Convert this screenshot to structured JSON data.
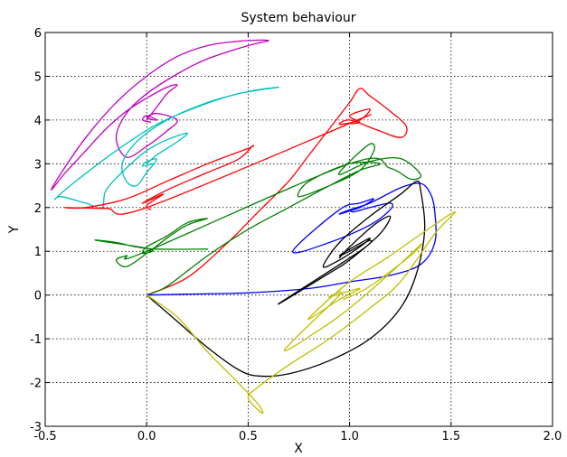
{
  "chart_data": {
    "type": "line",
    "title": "System behaviour",
    "xlabel": "X",
    "ylabel": "Y",
    "xlim": [
      -0.5,
      2.0
    ],
    "ylim": [
      -3,
      6
    ],
    "xticks": [
      -0.5,
      0.0,
      0.5,
      1.0,
      1.5,
      2.0
    ],
    "xtick_labels": [
      "-0.5",
      "0.0",
      "0.5",
      "1.0",
      "1.5",
      "2.0"
    ],
    "yticks": [
      -3,
      -2,
      -1,
      0,
      1,
      2,
      3,
      4,
      5,
      6
    ],
    "ytick_labels": [
      "-3",
      "-2",
      "-1",
      "0",
      "1",
      "2",
      "3",
      "4",
      "5",
      "6"
    ],
    "grid": true,
    "series": [
      {
        "color": "#bf00bf",
        "points": [
          [
            0,
            4
          ],
          [
            0.05,
            4.3
          ],
          [
            0.1,
            4.6
          ],
          [
            0.15,
            4.8
          ],
          [
            0.1,
            4.75
          ],
          [
            0,
            4.5
          ],
          [
            -0.1,
            4.2
          ],
          [
            -0.2,
            3.8
          ],
          [
            -0.3,
            3.3
          ],
          [
            -0.4,
            2.8
          ],
          [
            -0.47,
            2.4
          ],
          [
            -0.42,
            2.8
          ],
          [
            -0.3,
            3.6
          ],
          [
            -0.15,
            4.4
          ],
          [
            0,
            5.0
          ],
          [
            0.15,
            5.45
          ],
          [
            0.3,
            5.7
          ],
          [
            0.45,
            5.8
          ],
          [
            0.6,
            5.82
          ],
          [
            0.5,
            5.7
          ],
          [
            0.3,
            5.4
          ],
          [
            0.15,
            5.05
          ],
          [
            0,
            4.6
          ],
          [
            -0.1,
            4.15
          ],
          [
            -0.15,
            3.6
          ],
          [
            -0.1,
            3.15
          ],
          [
            0,
            3.4
          ],
          [
            0.1,
            3.75
          ],
          [
            0.15,
            4.0
          ],
          [
            0.05,
            4.15
          ],
          [
            0,
            4.05
          ],
          [
            0.05,
            4.0
          ],
          [
            0,
            4.1
          ],
          [
            -0.02,
            4.0
          ],
          [
            0.02,
            3.95
          ]
        ]
      },
      {
        "color": "#00bfbf",
        "points": [
          [
            0,
            3
          ],
          [
            0.05,
            3.2
          ],
          [
            0.15,
            3.5
          ],
          [
            0.2,
            3.7
          ],
          [
            0.1,
            3.55
          ],
          [
            0,
            3.3
          ],
          [
            -0.1,
            2.9
          ],
          [
            -0.2,
            2.4
          ],
          [
            -0.22,
            2.0
          ],
          [
            -0.3,
            2.1
          ],
          [
            -0.42,
            2.25
          ],
          [
            -0.45,
            2.2
          ],
          [
            -0.35,
            2.6
          ],
          [
            -0.15,
            3.3
          ],
          [
            0.05,
            3.9
          ],
          [
            0.25,
            4.3
          ],
          [
            0.45,
            4.6
          ],
          [
            0.65,
            4.75
          ],
          [
            0.5,
            4.65
          ],
          [
            0.3,
            4.4
          ],
          [
            0.1,
            4.0
          ],
          [
            -0.05,
            3.5
          ],
          [
            -0.12,
            3.0
          ],
          [
            -0.1,
            2.6
          ],
          [
            -0.05,
            2.5
          ],
          [
            0,
            2.8
          ],
          [
            0.05,
            3.1
          ],
          [
            0,
            3.05
          ],
          [
            -0.02,
            2.95
          ],
          [
            0.03,
            3.0
          ]
        ]
      },
      {
        "color": "#ff0000",
        "points": [
          [
            0,
            0
          ],
          [
            0.2,
            0.4
          ],
          [
            0.4,
            1.2
          ],
          [
            0.55,
            1.9
          ],
          [
            0.7,
            2.6
          ],
          [
            0.8,
            3.2
          ],
          [
            0.9,
            3.8
          ],
          [
            1.0,
            4.4
          ],
          [
            1.05,
            4.72
          ],
          [
            1.1,
            4.55
          ],
          [
            1.2,
            4.2
          ],
          [
            1.28,
            3.85
          ],
          [
            1.25,
            3.6
          ],
          [
            1.12,
            3.8
          ],
          [
            1.0,
            4.0
          ],
          [
            0.95,
            3.9
          ],
          [
            1.05,
            4.0
          ],
          [
            1.1,
            4.25
          ],
          [
            1.0,
            4.1
          ],
          [
            1.05,
            3.95
          ],
          [
            1.0,
            3.92
          ],
          [
            1.04,
            4.0
          ],
          [
            0.0,
            2.0
          ],
          [
            -0.2,
            1.98
          ],
          [
            -0.4,
            2.0
          ],
          [
            -0.3,
            2.0
          ],
          [
            -0.1,
            2.2
          ],
          [
            0.1,
            2.6
          ],
          [
            0.3,
            3.0
          ],
          [
            0.5,
            3.35
          ],
          [
            0.52,
            3.4
          ],
          [
            0.45,
            3.1
          ],
          [
            0.3,
            2.8
          ],
          [
            0.1,
            2.4
          ],
          [
            -0.02,
            2.1
          ],
          [
            0.03,
            2.2
          ],
          [
            0.08,
            2.3
          ],
          [
            0,
            2.05
          ],
          [
            0.02,
            1.95
          ]
        ]
      },
      {
        "color": "#008000",
        "points": [
          [
            0,
            0
          ],
          [
            0.1,
            0.2
          ],
          [
            0.3,
            0.9
          ],
          [
            0.5,
            1.5
          ],
          [
            0.7,
            2.0
          ],
          [
            0.9,
            2.5
          ],
          [
            1.05,
            2.85
          ],
          [
            1.15,
            3.0
          ],
          [
            1.0,
            3.0
          ],
          [
            0.8,
            2.6
          ],
          [
            0.75,
            2.25
          ],
          [
            0.9,
            2.5
          ],
          [
            1.05,
            2.85
          ],
          [
            1.12,
            3.3
          ],
          [
            1.1,
            3.45
          ],
          [
            1.0,
            3.05
          ],
          [
            0.95,
            2.75
          ],
          [
            1.1,
            3.05
          ],
          [
            1.25,
            3.12
          ],
          [
            1.35,
            2.75
          ],
          [
            1.3,
            2.65
          ],
          [
            1.2,
            2.9
          ],
          [
            1.0,
            3.0
          ],
          [
            0,
            1.0
          ],
          [
            -0.1,
            0.9
          ],
          [
            -0.15,
            0.8
          ],
          [
            -0.1,
            0.65
          ],
          [
            0,
            0.95
          ],
          [
            0.1,
            1.3
          ],
          [
            0.2,
            1.6
          ],
          [
            0.3,
            1.75
          ],
          [
            0.2,
            1.65
          ],
          [
            0.1,
            1.35
          ],
          [
            0,
            1.1
          ],
          [
            -0.02,
            0.95
          ],
          [
            0.02,
            1.05
          ],
          [
            -0.25,
            1.25
          ],
          [
            -0.15,
            1.2
          ],
          [
            -0.05,
            1.1
          ],
          [
            0.05,
            1.05
          ],
          [
            0.3,
            1.05
          ]
        ]
      },
      {
        "color": "#0000ff",
        "points": [
          [
            0,
            0
          ],
          [
            0.2,
            0.02
          ],
          [
            0.5,
            0.05
          ],
          [
            0.8,
            0.15
          ],
          [
            1.0,
            0.3
          ],
          [
            1.2,
            0.45
          ],
          [
            1.35,
            0.7
          ],
          [
            1.42,
            1.2
          ],
          [
            1.42,
            1.9
          ],
          [
            1.4,
            2.3
          ],
          [
            1.35,
            2.55
          ],
          [
            1.25,
            2.45
          ],
          [
            1.1,
            2.1
          ],
          [
            1.0,
            1.95
          ],
          [
            0.95,
            1.85
          ],
          [
            1.05,
            2.0
          ],
          [
            1.12,
            2.2
          ],
          [
            1.05,
            2.1
          ],
          [
            0.95,
            1.95
          ],
          [
            0.72,
            1.0
          ],
          [
            0.9,
            1.2
          ],
          [
            1.1,
            1.6
          ],
          [
            1.2,
            1.95
          ],
          [
            1.2,
            2.1
          ],
          [
            1.1,
            2.0
          ],
          [
            1.02,
            1.9
          ],
          [
            1.0,
            1.95
          ]
        ]
      },
      {
        "color": "#000000",
        "points": [
          [
            0,
            0
          ],
          [
            0.15,
            -0.6
          ],
          [
            0.3,
            -1.2
          ],
          [
            0.45,
            -1.7
          ],
          [
            0.55,
            -1.85
          ],
          [
            0.7,
            -1.8
          ],
          [
            0.9,
            -1.5
          ],
          [
            1.1,
            -1.0
          ],
          [
            1.25,
            -0.3
          ],
          [
            1.33,
            0.5
          ],
          [
            1.37,
            1.5
          ],
          [
            1.35,
            2.4
          ],
          [
            1.33,
            2.6
          ],
          [
            1.25,
            2.3
          ],
          [
            1.1,
            1.8
          ],
          [
            0.95,
            1.2
          ],
          [
            0.87,
            0.65
          ],
          [
            0.95,
            0.8
          ],
          [
            1.05,
            1.1
          ],
          [
            1.1,
            1.3
          ],
          [
            1.0,
            1.05
          ],
          [
            0.95,
            0.9
          ],
          [
            1.0,
            1.0
          ],
          [
            1.1,
            1.25
          ],
          [
            1.05,
            1.0
          ],
          [
            0.65,
            -0.2
          ],
          [
            0.9,
            0.5
          ],
          [
            1.0,
            0.8
          ],
          [
            1.15,
            1.4
          ],
          [
            1.2,
            1.8
          ],
          [
            1.12,
            1.6
          ],
          [
            1.0,
            1.1
          ],
          [
            0.95,
            0.85
          ]
        ]
      },
      {
        "color": "#bfbf00",
        "points": [
          [
            0,
            0
          ],
          [
            0.15,
            -0.5
          ],
          [
            0.3,
            -1.3
          ],
          [
            0.45,
            -2.0
          ],
          [
            0.55,
            -2.5
          ],
          [
            0.57,
            -2.7
          ],
          [
            0.5,
            -2.35
          ],
          [
            0.55,
            -2.1
          ],
          [
            0.7,
            -1.6
          ],
          [
            0.9,
            -1.0
          ],
          [
            1.1,
            -0.3
          ],
          [
            1.25,
            0.3
          ],
          [
            1.42,
            1.4
          ],
          [
            1.52,
            1.9
          ],
          [
            1.4,
            1.55
          ],
          [
            1.2,
            0.9
          ],
          [
            1.0,
            0.3
          ],
          [
            0.85,
            -0.3
          ],
          [
            0.8,
            -0.55
          ],
          [
            0.95,
            -0.1
          ],
          [
            1.05,
            0.15
          ],
          [
            0.9,
            -0.05
          ],
          [
            0.95,
            0.0
          ],
          [
            0.68,
            -1.25
          ],
          [
            0.85,
            -0.8
          ],
          [
            1.0,
            -0.3
          ],
          [
            1.2,
            0.5
          ],
          [
            1.35,
            1.15
          ],
          [
            1.3,
            0.9
          ],
          [
            1.1,
            0.2
          ],
          [
            0.97,
            -0.1
          ]
        ]
      }
    ]
  }
}
